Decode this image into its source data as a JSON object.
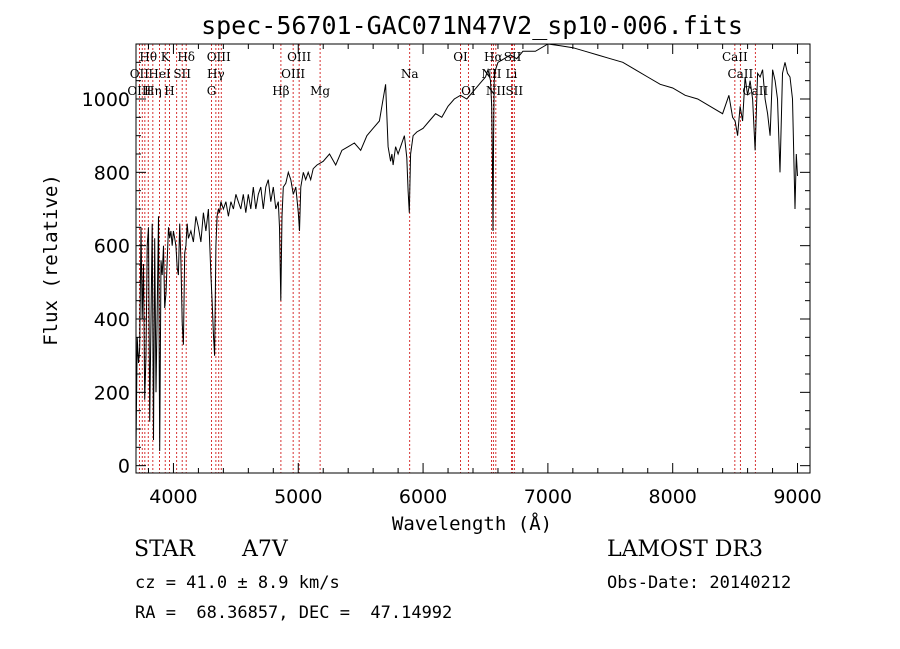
{
  "chart_data": {
    "type": "line",
    "title": "spec-56701-GAC071N47V2_sp10-006.fits",
    "xlabel": "Wavelength (Å)",
    "ylabel": "Flux (relative)",
    "xlim": [
      3700,
      9100
    ],
    "ylim": [
      -20,
      1150
    ],
    "xticks": [
      4000,
      5000,
      6000,
      7000,
      8000,
      9000
    ],
    "yticks": [
      0,
      200,
      400,
      600,
      800,
      1000
    ],
    "series": [
      {
        "name": "flux",
        "x": [
          3700,
          3710,
          3720,
          3730,
          3740,
          3750,
          3760,
          3770,
          3780,
          3790,
          3800,
          3810,
          3820,
          3830,
          3840,
          3850,
          3860,
          3870,
          3880,
          3890,
          3900,
          3910,
          3920,
          3930,
          3940,
          3950,
          3960,
          3970,
          3980,
          3990,
          4000,
          4010,
          4020,
          4030,
          4040,
          4050,
          4060,
          4070,
          4080,
          4090,
          4100,
          4110,
          4120,
          4140,
          4160,
          4180,
          4200,
          4220,
          4240,
          4260,
          4280,
          4300,
          4310,
          4320,
          4330,
          4340,
          4350,
          4360,
          4370,
          4380,
          4400,
          4420,
          4440,
          4460,
          4480,
          4500,
          4520,
          4540,
          4560,
          4580,
          4600,
          4620,
          4640,
          4660,
          4680,
          4700,
          4720,
          4740,
          4760,
          4780,
          4800,
          4820,
          4840,
          4850,
          4860,
          4870,
          4880,
          4900,
          4920,
          4940,
          4960,
          4980,
          5000,
          5010,
          5020,
          5040,
          5060,
          5080,
          5100,
          5120,
          5150,
          5200,
          5250,
          5300,
          5350,
          5400,
          5450,
          5500,
          5550,
          5600,
          5650,
          5700,
          5720,
          5740,
          5750,
          5760,
          5780,
          5800,
          5850,
          5870,
          5880,
          5890,
          5900,
          5920,
          5950,
          6000,
          6050,
          6100,
          6150,
          6200,
          6250,
          6300,
          6350,
          6400,
          6450,
          6500,
          6520,
          6540,
          6550,
          6555,
          6560,
          6565,
          6570,
          6580,
          6600,
          6650,
          6700,
          6750,
          6800,
          6900,
          7000,
          7100,
          7200,
          7300,
          7400,
          7500,
          7600,
          7700,
          7800,
          7900,
          8000,
          8100,
          8200,
          8300,
          8400,
          8450,
          8480,
          8500,
          8520,
          8540,
          8560,
          8580,
          8600,
          8620,
          8640,
          8660,
          8680,
          8700,
          8720,
          8740,
          8760,
          8780,
          8800,
          8820,
          8840,
          8860,
          8880,
          8900,
          8920,
          8940,
          8960,
          8980,
          8990,
          9000
        ],
        "y": [
          40,
          350,
          280,
          320,
          650,
          400,
          550,
          180,
          300,
          600,
          650,
          120,
          400,
          660,
          70,
          620,
          200,
          420,
          680,
          40,
          560,
          520,
          600,
          430,
          470,
          560,
          650,
          620,
          640,
          600,
          640,
          620,
          600,
          540,
          520,
          660,
          560,
          390,
          330,
          580,
          600,
          660,
          620,
          640,
          610,
          680,
          650,
          610,
          690,
          640,
          700,
          520,
          450,
          360,
          300,
          600,
          680,
          700,
          690,
          720,
          700,
          720,
          680,
          720,
          700,
          740,
          720,
          700,
          740,
          690,
          740,
          700,
          760,
          700,
          740,
          760,
          700,
          760,
          780,
          720,
          760,
          700,
          720,
          650,
          450,
          680,
          760,
          770,
          800,
          780,
          740,
          760,
          690,
          640,
          760,
          800,
          780,
          800,
          780,
          810,
          820,
          830,
          850,
          820,
          860,
          870,
          880,
          860,
          900,
          920,
          940,
          1040,
          870,
          830,
          850,
          820,
          870,
          850,
          900,
          840,
          750,
          690,
          850,
          900,
          910,
          920,
          940,
          960,
          950,
          980,
          1000,
          1010,
          1000,
          1020,
          1040,
          1060,
          1080,
          1050,
          980,
          870,
          640,
          900,
          1050,
          1080,
          1100,
          1110,
          1120,
          1110,
          1130,
          1130,
          1150,
          1145,
          1140,
          1130,
          1120,
          1110,
          1100,
          1080,
          1060,
          1040,
          1030,
          1010,
          1000,
          980,
          960,
          1010,
          950,
          940,
          900,
          980,
          940,
          1060,
          1010,
          1050,
          1000,
          860,
          1070,
          1060,
          1080,
          1000,
          960,
          900,
          1080,
          1050,
          1000,
          800,
          1070,
          1100,
          1070,
          1060,
          1000,
          700,
          850,
          790
        ]
      }
    ],
    "spectral_lines": [
      {
        "name": "Hθ",
        "wavelength": 3798,
        "row": 0
      },
      {
        "name": "K",
        "wavelength": 3934,
        "row": 0
      },
      {
        "name": "Hδ",
        "wavelength": 4102,
        "row": 0
      },
      {
        "name": "OIII",
        "wavelength": 4363,
        "row": 0
      },
      {
        "name": "OIII",
        "wavelength": 5007,
        "row": 0
      },
      {
        "name": "OI",
        "wavelength": 6300,
        "row": 0
      },
      {
        "name": "Hα",
        "wavelength": 6563,
        "row": 0
      },
      {
        "name": "SII",
        "wavelength": 6717,
        "row": 0
      },
      {
        "name": "CaII",
        "wavelength": 8498,
        "row": 0
      },
      {
        "name": "OII",
        "wavelength": 3727,
        "row": 1
      },
      {
        "name": "HeI",
        "wavelength": 3889,
        "row": 1
      },
      {
        "name": "SII",
        "wavelength": 4070,
        "row": 1
      },
      {
        "name": "Hγ",
        "wavelength": 4340,
        "row": 1
      },
      {
        "name": "OIII",
        "wavelength": 4959,
        "row": 1
      },
      {
        "name": "Na",
        "wavelength": 5893,
        "row": 1
      },
      {
        "name": "NII",
        "wavelength": 6548,
        "row": 1
      },
      {
        "name": "Li",
        "wavelength": 6708,
        "row": 1
      },
      {
        "name": "CaII",
        "wavelength": 8542,
        "row": 1
      },
      {
        "name": "OIII",
        "wavelength": 3727,
        "row": 2
      },
      {
        "name": "Hη",
        "wavelength": 3835,
        "row": 2
      },
      {
        "name": "H",
        "wavelength": 3968,
        "row": 2
      },
      {
        "name": "G",
        "wavelength": 4305,
        "row": 2
      },
      {
        "name": "Hβ",
        "wavelength": 4861,
        "row": 2
      },
      {
        "name": "Mg",
        "wavelength": 5175,
        "row": 2
      },
      {
        "name": "OI",
        "wavelength": 6363,
        "row": 2
      },
      {
        "name": "NII",
        "wavelength": 6583,
        "row": 2
      },
      {
        "name": "SII",
        "wavelength": 6731,
        "row": 2
      },
      {
        "name": "CaII",
        "wavelength": 8662,
        "row": 2
      }
    ],
    "extra_line_markers": [
      3750,
      3771,
      3889,
      4026,
      4383
    ]
  },
  "info": {
    "object_class": "STAR",
    "subclass": "A7V",
    "survey": "LAMOST DR3",
    "redshift": "cz = 41.0 ± 8.9 km/s",
    "obs_date": "Obs-Date: 20140212",
    "coords": "RA =  68.36857, DEC =  47.14992"
  },
  "colors": {
    "spectrum": "#000000",
    "marker": "#cc0000",
    "axes": "#000000"
  }
}
